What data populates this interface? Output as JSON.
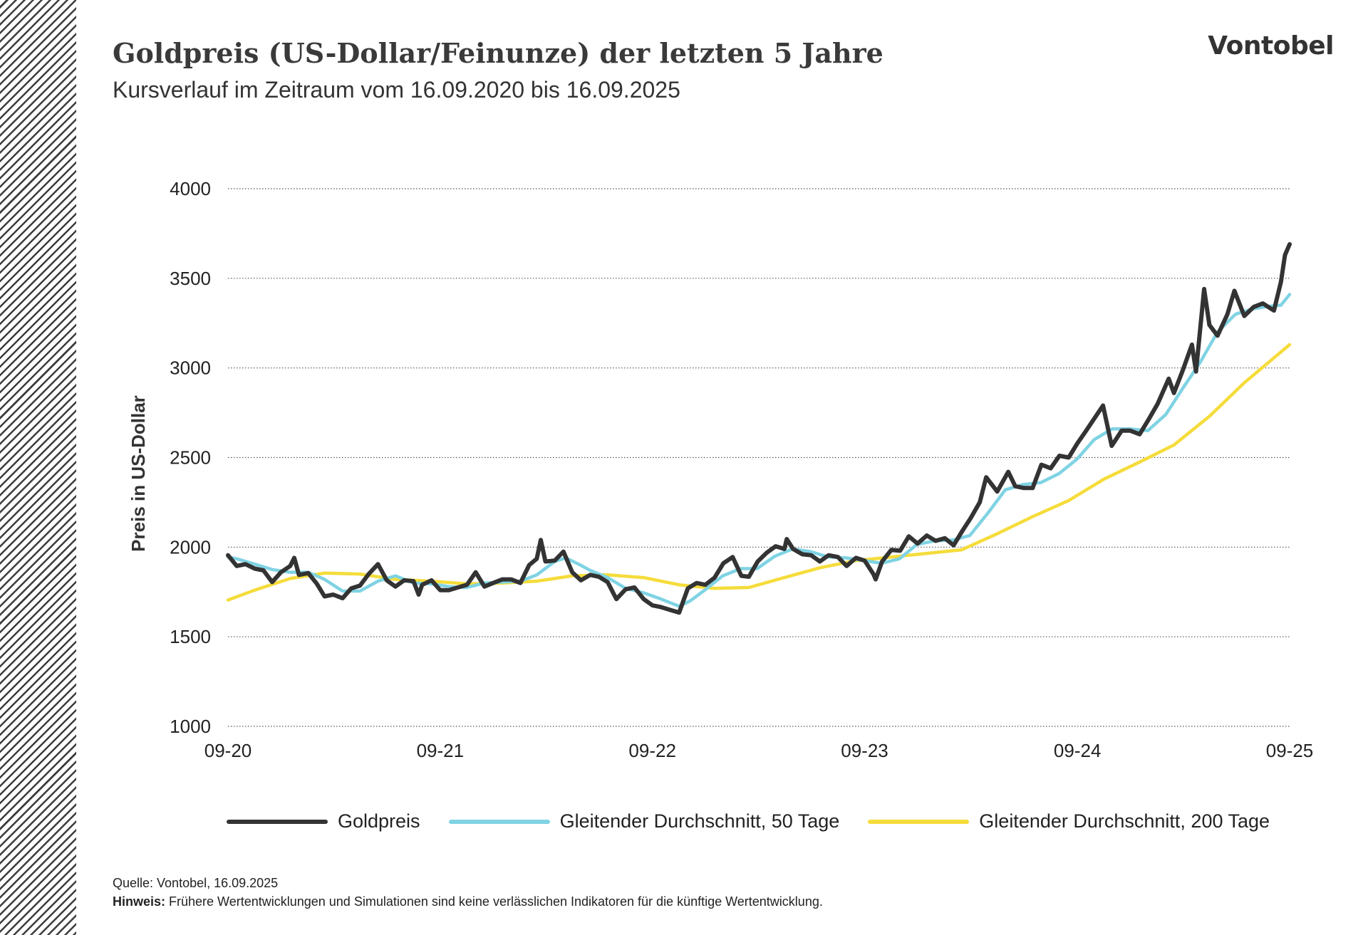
{
  "header": {
    "title": "Goldpreis (US-Dollar/Feinunze) der letzten 5 Jahre",
    "subtitle": "Kursverlauf im Zeitraum vom 16.09.2020 bis 16.09.2025",
    "brand": "Vontobel"
  },
  "footer": {
    "source": "Quelle: Vontobel, 16.09.2025",
    "note_label": "Hinweis:",
    "note_text": " Frühere Wertentwicklungen und Simulationen sind keine verlässlichen Indikatoren für die künftige Wertentwicklung."
  },
  "colors": {
    "gold": "#333333",
    "ma50": "#7fd3e3",
    "ma200": "#f5dc3a",
    "grid": "#555555",
    "stripe": "#3c3c3c"
  },
  "chart_data": {
    "type": "line",
    "title": "Goldpreis (US-Dollar/Feinunze) der letzten 5 Jahre",
    "subtitle": "Kursverlauf im Zeitraum vom 16.09.2020 bis 16.09.2025",
    "ylabel": "Preis in US-Dollar",
    "xlabel": "",
    "ylim": [
      1000,
      4000
    ],
    "yticks": [
      1000,
      1500,
      2000,
      2500,
      3000,
      3500,
      4000
    ],
    "xlim": [
      "2020-09-16",
      "2025-09-16"
    ],
    "xticks": [
      {
        "date": "2020-09-16",
        "label": "09-20"
      },
      {
        "date": "2021-09-16",
        "label": "09-21"
      },
      {
        "date": "2022-09-16",
        "label": "09-22"
      },
      {
        "date": "2023-09-16",
        "label": "09-23"
      },
      {
        "date": "2024-09-16",
        "label": "09-24"
      },
      {
        "date": "2025-09-16",
        "label": "09-25"
      }
    ],
    "grid": true,
    "legend_position": "bottom",
    "series": [
      {
        "name": "Goldpreis",
        "color": "#333333",
        "points": [
          [
            "2020-09-16",
            1955
          ],
          [
            "2020-10-01",
            1895
          ],
          [
            "2020-10-16",
            1905
          ],
          [
            "2020-11-01",
            1880
          ],
          [
            "2020-11-16",
            1870
          ],
          [
            "2020-12-01",
            1805
          ],
          [
            "2020-12-16",
            1860
          ],
          [
            "2021-01-01",
            1895
          ],
          [
            "2021-01-08",
            1940
          ],
          [
            "2021-01-16",
            1845
          ],
          [
            "2021-02-01",
            1855
          ],
          [
            "2021-02-16",
            1795
          ],
          [
            "2021-03-01",
            1725
          ],
          [
            "2021-03-16",
            1735
          ],
          [
            "2021-04-01",
            1715
          ],
          [
            "2021-04-16",
            1770
          ],
          [
            "2021-05-01",
            1785
          ],
          [
            "2021-05-16",
            1850
          ],
          [
            "2021-06-01",
            1905
          ],
          [
            "2021-06-16",
            1815
          ],
          [
            "2021-07-01",
            1780
          ],
          [
            "2021-07-16",
            1815
          ],
          [
            "2021-08-01",
            1810
          ],
          [
            "2021-08-10",
            1735
          ],
          [
            "2021-08-16",
            1790
          ],
          [
            "2021-09-01",
            1815
          ],
          [
            "2021-09-16",
            1760
          ],
          [
            "2021-10-01",
            1760
          ],
          [
            "2021-10-16",
            1775
          ],
          [
            "2021-11-01",
            1790
          ],
          [
            "2021-11-16",
            1860
          ],
          [
            "2021-12-01",
            1780
          ],
          [
            "2021-12-16",
            1800
          ],
          [
            "2022-01-01",
            1820
          ],
          [
            "2022-01-16",
            1820
          ],
          [
            "2022-02-01",
            1800
          ],
          [
            "2022-02-16",
            1900
          ],
          [
            "2022-03-01",
            1935
          ],
          [
            "2022-03-08",
            2040
          ],
          [
            "2022-03-16",
            1920
          ],
          [
            "2022-04-01",
            1925
          ],
          [
            "2022-04-16",
            1975
          ],
          [
            "2022-05-01",
            1860
          ],
          [
            "2022-05-16",
            1815
          ],
          [
            "2022-06-01",
            1845
          ],
          [
            "2022-06-16",
            1835
          ],
          [
            "2022-07-01",
            1805
          ],
          [
            "2022-07-16",
            1710
          ],
          [
            "2022-08-01",
            1765
          ],
          [
            "2022-08-16",
            1775
          ],
          [
            "2022-09-01",
            1710
          ],
          [
            "2022-09-16",
            1675
          ],
          [
            "2022-10-01",
            1665
          ],
          [
            "2022-10-16",
            1650
          ],
          [
            "2022-11-01",
            1635
          ],
          [
            "2022-11-16",
            1770
          ],
          [
            "2022-12-01",
            1800
          ],
          [
            "2022-12-16",
            1790
          ],
          [
            "2023-01-01",
            1830
          ],
          [
            "2023-01-16",
            1910
          ],
          [
            "2023-02-01",
            1945
          ],
          [
            "2023-02-16",
            1840
          ],
          [
            "2023-03-01",
            1835
          ],
          [
            "2023-03-16",
            1920
          ],
          [
            "2023-04-01",
            1970
          ],
          [
            "2023-04-16",
            2005
          ],
          [
            "2023-05-01",
            1990
          ],
          [
            "2023-05-05",
            2045
          ],
          [
            "2023-05-16",
            1990
          ],
          [
            "2023-06-01",
            1960
          ],
          [
            "2023-06-16",
            1955
          ],
          [
            "2023-07-01",
            1920
          ],
          [
            "2023-07-16",
            1955
          ],
          [
            "2023-08-01",
            1945
          ],
          [
            "2023-08-16",
            1895
          ],
          [
            "2023-09-01",
            1940
          ],
          [
            "2023-09-16",
            1925
          ],
          [
            "2023-10-01",
            1850
          ],
          [
            "2023-10-05",
            1820
          ],
          [
            "2023-10-16",
            1920
          ],
          [
            "2023-11-01",
            1985
          ],
          [
            "2023-11-16",
            1980
          ],
          [
            "2023-12-01",
            2060
          ],
          [
            "2023-12-16",
            2020
          ],
          [
            "2024-01-01",
            2065
          ],
          [
            "2024-01-16",
            2035
          ],
          [
            "2024-02-01",
            2050
          ],
          [
            "2024-02-16",
            2010
          ],
          [
            "2024-03-01",
            2085
          ],
          [
            "2024-03-16",
            2160
          ],
          [
            "2024-04-01",
            2250
          ],
          [
            "2024-04-12",
            2390
          ],
          [
            "2024-05-01",
            2310
          ],
          [
            "2024-05-20",
            2420
          ],
          [
            "2024-06-01",
            2340
          ],
          [
            "2024-06-16",
            2330
          ],
          [
            "2024-07-01",
            2330
          ],
          [
            "2024-07-16",
            2460
          ],
          [
            "2024-08-01",
            2440
          ],
          [
            "2024-08-16",
            2510
          ],
          [
            "2024-09-01",
            2500
          ],
          [
            "2024-09-16",
            2580
          ],
          [
            "2024-10-01",
            2650
          ],
          [
            "2024-10-30",
            2790
          ],
          [
            "2024-11-14",
            2565
          ],
          [
            "2024-12-01",
            2650
          ],
          [
            "2024-12-16",
            2650
          ],
          [
            "2025-01-01",
            2630
          ],
          [
            "2025-01-16",
            2710
          ],
          [
            "2025-02-01",
            2800
          ],
          [
            "2025-02-20",
            2940
          ],
          [
            "2025-03-01",
            2860
          ],
          [
            "2025-03-16",
            2985
          ],
          [
            "2025-04-01",
            3130
          ],
          [
            "2025-04-08",
            2980
          ],
          [
            "2025-04-22",
            3440
          ],
          [
            "2025-05-01",
            3240
          ],
          [
            "2025-05-15",
            3180
          ],
          [
            "2025-06-01",
            3300
          ],
          [
            "2025-06-13",
            3430
          ],
          [
            "2025-06-30",
            3290
          ],
          [
            "2025-07-16",
            3340
          ],
          [
            "2025-08-01",
            3360
          ],
          [
            "2025-08-20",
            3320
          ],
          [
            "2025-09-01",
            3480
          ],
          [
            "2025-09-08",
            3630
          ],
          [
            "2025-09-16",
            3690
          ]
        ]
      },
      {
        "name": "Gleitender Durchschnitt, 50 Tage",
        "color": "#7fd3e3",
        "points": [
          [
            "2020-09-16",
            1945
          ],
          [
            "2020-10-01",
            1935
          ],
          [
            "2020-11-01",
            1905
          ],
          [
            "2020-12-01",
            1875
          ],
          [
            "2021-01-01",
            1860
          ],
          [
            "2021-02-01",
            1860
          ],
          [
            "2021-03-01",
            1820
          ],
          [
            "2021-04-01",
            1755
          ],
          [
            "2021-05-01",
            1755
          ],
          [
            "2021-06-01",
            1810
          ],
          [
            "2021-07-01",
            1840
          ],
          [
            "2021-08-01",
            1800
          ],
          [
            "2021-09-01",
            1795
          ],
          [
            "2021-10-01",
            1780
          ],
          [
            "2021-11-01",
            1775
          ],
          [
            "2021-12-01",
            1800
          ],
          [
            "2022-01-01",
            1805
          ],
          [
            "2022-02-01",
            1810
          ],
          [
            "2022-03-01",
            1845
          ],
          [
            "2022-04-01",
            1920
          ],
          [
            "2022-04-20",
            1940
          ],
          [
            "2022-05-15",
            1900
          ],
          [
            "2022-06-01",
            1870
          ],
          [
            "2022-07-01",
            1830
          ],
          [
            "2022-08-01",
            1770
          ],
          [
            "2022-09-01",
            1745
          ],
          [
            "2022-10-01",
            1710
          ],
          [
            "2022-11-01",
            1670
          ],
          [
            "2022-11-20",
            1700
          ],
          [
            "2022-12-15",
            1760
          ],
          [
            "2023-01-15",
            1840
          ],
          [
            "2023-02-15",
            1880
          ],
          [
            "2023-03-15",
            1880
          ],
          [
            "2023-04-15",
            1950
          ],
          [
            "2023-05-15",
            1990
          ],
          [
            "2023-06-15",
            1975
          ],
          [
            "2023-07-15",
            1945
          ],
          [
            "2023-08-15",
            1940
          ],
          [
            "2023-09-15",
            1925
          ],
          [
            "2023-10-15",
            1910
          ],
          [
            "2023-11-15",
            1935
          ],
          [
            "2023-12-15",
            2015
          ],
          [
            "2024-01-15",
            2035
          ],
          [
            "2024-02-15",
            2040
          ],
          [
            "2024-03-15",
            2065
          ],
          [
            "2024-04-15",
            2190
          ],
          [
            "2024-05-15",
            2320
          ],
          [
            "2024-06-15",
            2350
          ],
          [
            "2024-07-15",
            2360
          ],
          [
            "2024-08-15",
            2410
          ],
          [
            "2024-09-15",
            2490
          ],
          [
            "2024-10-15",
            2600
          ],
          [
            "2024-11-15",
            2660
          ],
          [
            "2024-12-15",
            2660
          ],
          [
            "2025-01-15",
            2650
          ],
          [
            "2025-02-15",
            2740
          ],
          [
            "2025-03-15",
            2880
          ],
          [
            "2025-04-15",
            3030
          ],
          [
            "2025-05-15",
            3200
          ],
          [
            "2025-06-15",
            3300
          ],
          [
            "2025-07-15",
            3330
          ],
          [
            "2025-08-15",
            3345
          ],
          [
            "2025-09-01",
            3350
          ],
          [
            "2025-09-16",
            3410
          ]
        ]
      },
      {
        "name": "Gleitender Durchschnitt, 200 Tage",
        "color": "#f5dc3a",
        "points": [
          [
            "2020-09-16",
            1705
          ],
          [
            "2020-11-01",
            1760
          ],
          [
            "2021-01-01",
            1825
          ],
          [
            "2021-03-01",
            1855
          ],
          [
            "2021-05-01",
            1850
          ],
          [
            "2021-07-01",
            1820
          ],
          [
            "2021-09-01",
            1810
          ],
          [
            "2021-11-01",
            1795
          ],
          [
            "2022-01-01",
            1800
          ],
          [
            "2022-03-01",
            1810
          ],
          [
            "2022-05-01",
            1840
          ],
          [
            "2022-07-01",
            1845
          ],
          [
            "2022-09-01",
            1830
          ],
          [
            "2022-11-01",
            1790
          ],
          [
            "2023-01-01",
            1770
          ],
          [
            "2023-03-01",
            1775
          ],
          [
            "2023-05-01",
            1830
          ],
          [
            "2023-07-01",
            1885
          ],
          [
            "2023-09-01",
            1925
          ],
          [
            "2023-11-01",
            1945
          ],
          [
            "2024-01-01",
            1965
          ],
          [
            "2024-03-01",
            1985
          ],
          [
            "2024-05-01",
            2075
          ],
          [
            "2024-07-01",
            2170
          ],
          [
            "2024-09-01",
            2260
          ],
          [
            "2024-11-01",
            2380
          ],
          [
            "2025-01-01",
            2475
          ],
          [
            "2025-03-01",
            2570
          ],
          [
            "2025-05-01",
            2730
          ],
          [
            "2025-07-01",
            2920
          ],
          [
            "2025-09-16",
            3130
          ]
        ]
      }
    ]
  }
}
